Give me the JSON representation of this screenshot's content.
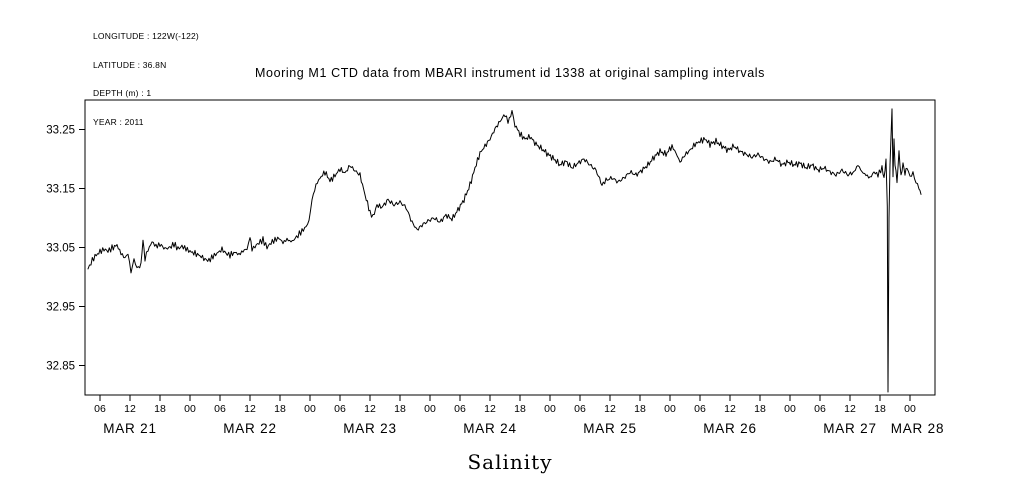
{
  "page": {
    "background": "#ffffff",
    "ink": "#000000"
  },
  "metadata_block": {
    "lines": [
      "LONGITUDE : 122W(-122)",
      "LATITUDE : 36.8N",
      "DEPTH (m) : 1",
      "YEAR : 2011"
    ]
  },
  "chart_data": {
    "type": "line",
    "title": "Mooring M1 CTD data from MBARI instrument id 1338 at original sampling intervals",
    "xlabel": "Salinity",
    "ylabel": "",
    "x_unit": "hours since MAR 21 2011 00:00",
    "xlim": [
      3,
      173
    ],
    "ylim": [
      32.8,
      33.3
    ],
    "grid": false,
    "legend": "none",
    "line_color": "#000000",
    "y_ticks": [
      33.25,
      33.15,
      33.05,
      32.95,
      32.85
    ],
    "x_hour_ticks": [
      {
        "t": 6,
        "label": "06"
      },
      {
        "t": 12,
        "label": "12"
      },
      {
        "t": 18,
        "label": "18"
      },
      {
        "t": 24,
        "label": "00"
      },
      {
        "t": 30,
        "label": "06"
      },
      {
        "t": 36,
        "label": "12"
      },
      {
        "t": 42,
        "label": "18"
      },
      {
        "t": 48,
        "label": "00"
      },
      {
        "t": 54,
        "label": "06"
      },
      {
        "t": 60,
        "label": "12"
      },
      {
        "t": 66,
        "label": "18"
      },
      {
        "t": 72,
        "label": "00"
      },
      {
        "t": 78,
        "label": "06"
      },
      {
        "t": 84,
        "label": "12"
      },
      {
        "t": 90,
        "label": "18"
      },
      {
        "t": 96,
        "label": "00"
      },
      {
        "t": 102,
        "label": "06"
      },
      {
        "t": 108,
        "label": "12"
      },
      {
        "t": 114,
        "label": "18"
      },
      {
        "t": 120,
        "label": "00"
      },
      {
        "t": 126,
        "label": "06"
      },
      {
        "t": 132,
        "label": "12"
      },
      {
        "t": 138,
        "label": "18"
      },
      {
        "t": 144,
        "label": "00"
      },
      {
        "t": 150,
        "label": "06"
      },
      {
        "t": 156,
        "label": "12"
      },
      {
        "t": 162,
        "label": "18"
      },
      {
        "t": 168,
        "label": "00"
      }
    ],
    "x_day_labels": [
      {
        "label": "MAR 21",
        "t": 12
      },
      {
        "label": "MAR 22",
        "t": 36
      },
      {
        "label": "MAR 23",
        "t": 60
      },
      {
        "label": "MAR 24",
        "t": 84
      },
      {
        "label": "MAR 25",
        "t": 108
      },
      {
        "label": "MAR 26",
        "t": 132
      },
      {
        "label": "MAR 27",
        "t": 156
      },
      {
        "label": "MAR 28",
        "t": 169.5
      }
    ],
    "series": [
      {
        "name": "Salinity",
        "points": [
          [
            3.6,
            33.012
          ],
          [
            4.2,
            33.025
          ],
          [
            5,
            33.035
          ],
          [
            6,
            33.043
          ],
          [
            6.8,
            33.047
          ],
          [
            7.6,
            33.044
          ],
          [
            8.4,
            33.049
          ],
          [
            9.4,
            33.054
          ],
          [
            10.2,
            33.04
          ],
          [
            11,
            33.032
          ],
          [
            11.6,
            33.04
          ],
          [
            12.2,
            33.008
          ],
          [
            12.8,
            33.03
          ],
          [
            13.4,
            33.015
          ],
          [
            14.2,
            33.02
          ],
          [
            14.6,
            33.063
          ],
          [
            15,
            33.032
          ],
          [
            15.6,
            33.045
          ],
          [
            16.4,
            33.06
          ],
          [
            17.2,
            33.052
          ],
          [
            18,
            33.055
          ],
          [
            19,
            33.048
          ],
          [
            20,
            33.05
          ],
          [
            20.8,
            33.056
          ],
          [
            21.6,
            33.048
          ],
          [
            22.4,
            33.052
          ],
          [
            23.2,
            33.048
          ],
          [
            24,
            33.043
          ],
          [
            25,
            33.04
          ],
          [
            26,
            33.036
          ],
          [
            27,
            33.03
          ],
          [
            27.8,
            33.028
          ],
          [
            28.6,
            33.035
          ],
          [
            29.4,
            33.04
          ],
          [
            30.4,
            33.047
          ],
          [
            31.2,
            33.04
          ],
          [
            32,
            33.037
          ],
          [
            33,
            33.042
          ],
          [
            33.8,
            33.038
          ],
          [
            34.6,
            33.044
          ],
          [
            35.4,
            33.048
          ],
          [
            36,
            33.066
          ],
          [
            36.4,
            33.046
          ],
          [
            37,
            33.052
          ],
          [
            37.8,
            33.058
          ],
          [
            38.6,
            33.063
          ],
          [
            39.4,
            33.05
          ],
          [
            40.2,
            33.058
          ],
          [
            41,
            33.063
          ],
          [
            41.8,
            33.066
          ],
          [
            42.6,
            33.058
          ],
          [
            43.4,
            33.064
          ],
          [
            44.2,
            33.06
          ],
          [
            45,
            33.064
          ],
          [
            45.6,
            33.071
          ],
          [
            46.4,
            33.078
          ],
          [
            47.2,
            33.085
          ],
          [
            47.8,
            33.095
          ],
          [
            48.4,
            33.131
          ],
          [
            49.2,
            33.156
          ],
          [
            50,
            33.168
          ],
          [
            51,
            33.178
          ],
          [
            52,
            33.163
          ],
          [
            53,
            33.172
          ],
          [
            54,
            33.183
          ],
          [
            55,
            33.176
          ],
          [
            56,
            33.189
          ],
          [
            57,
            33.18
          ],
          [
            58,
            33.173
          ],
          [
            59,
            33.139
          ],
          [
            60,
            33.11
          ],
          [
            60.6,
            33.102
          ],
          [
            61.4,
            33.122
          ],
          [
            62.4,
            33.118
          ],
          [
            63.6,
            33.131
          ],
          [
            64.8,
            33.122
          ],
          [
            66,
            33.127
          ],
          [
            67.2,
            33.118
          ],
          [
            68.4,
            33.093
          ],
          [
            69.4,
            33.08
          ],
          [
            70.4,
            33.088
          ],
          [
            71.6,
            33.095
          ],
          [
            72.8,
            33.1
          ],
          [
            74,
            33.093
          ],
          [
            75.2,
            33.105
          ],
          [
            76.4,
            33.098
          ],
          [
            77.6,
            33.114
          ],
          [
            78.8,
            33.131
          ],
          [
            80,
            33.156
          ],
          [
            81,
            33.185
          ],
          [
            82,
            33.21
          ],
          [
            83,
            33.222
          ],
          [
            84,
            33.234
          ],
          [
            85,
            33.251
          ],
          [
            86,
            33.264
          ],
          [
            87,
            33.276
          ],
          [
            87.6,
            33.262
          ],
          [
            88.4,
            33.28
          ],
          [
            89,
            33.258
          ],
          [
            90,
            33.242
          ],
          [
            91,
            33.234
          ],
          [
            92,
            33.238
          ],
          [
            93.2,
            33.225
          ],
          [
            94.4,
            33.217
          ],
          [
            95.6,
            33.208
          ],
          [
            96.8,
            33.2
          ],
          [
            98,
            33.19
          ],
          [
            99.2,
            33.196
          ],
          [
            100.4,
            33.185
          ],
          [
            101.6,
            33.193
          ],
          [
            102.8,
            33.2
          ],
          [
            104,
            33.19
          ],
          [
            105.2,
            33.181
          ],
          [
            106.4,
            33.156
          ],
          [
            107.2,
            33.164
          ],
          [
            108.4,
            33.168
          ],
          [
            109.6,
            33.161
          ],
          [
            110.8,
            33.168
          ],
          [
            112,
            33.178
          ],
          [
            113.2,
            33.173
          ],
          [
            114.4,
            33.181
          ],
          [
            115.6,
            33.19
          ],
          [
            116.8,
            33.203
          ],
          [
            118,
            33.213
          ],
          [
            119.2,
            33.208
          ],
          [
            120.4,
            33.222
          ],
          [
            121.2,
            33.21
          ],
          [
            122,
            33.195
          ],
          [
            123,
            33.207
          ],
          [
            124,
            33.215
          ],
          [
            125,
            33.225
          ],
          [
            126,
            33.23
          ],
          [
            127,
            33.234
          ],
          [
            128,
            33.225
          ],
          [
            129.2,
            33.23
          ],
          [
            130.4,
            33.222
          ],
          [
            131.6,
            33.215
          ],
          [
            132.8,
            33.222
          ],
          [
            134,
            33.213
          ],
          [
            135.2,
            33.208
          ],
          [
            136.4,
            33.203
          ],
          [
            137.6,
            33.208
          ],
          [
            138.8,
            33.2
          ],
          [
            140,
            33.195
          ],
          [
            141.2,
            33.2
          ],
          [
            142.4,
            33.19
          ],
          [
            143.6,
            33.195
          ],
          [
            144.8,
            33.19
          ],
          [
            146,
            33.193
          ],
          [
            147.2,
            33.185
          ],
          [
            148.4,
            33.19
          ],
          [
            149.6,
            33.181
          ],
          [
            150.8,
            33.185
          ],
          [
            152,
            33.178
          ],
          [
            153.2,
            33.173
          ],
          [
            154.4,
            33.181
          ],
          [
            155.6,
            33.173
          ],
          [
            156.8,
            33.178
          ],
          [
            157.6,
            33.19
          ],
          [
            158.4,
            33.178
          ],
          [
            159.2,
            33.173
          ],
          [
            160,
            33.168
          ],
          [
            160.8,
            33.178
          ],
          [
            161.6,
            33.173
          ],
          [
            162.4,
            33.185
          ],
          [
            162.8,
            33.164
          ],
          [
            163.2,
            33.2
          ],
          [
            163.45,
            33.12
          ],
          [
            163.6,
            32.805
          ],
          [
            163.8,
            33.1
          ],
          [
            164,
            33.19
          ],
          [
            164.4,
            33.285
          ],
          [
            164.6,
            33.17
          ],
          [
            164.8,
            33.23
          ],
          [
            165,
            33.19
          ],
          [
            165.4,
            33.16
          ],
          [
            165.8,
            33.212
          ],
          [
            166.2,
            33.172
          ],
          [
            166.6,
            33.195
          ],
          [
            167,
            33.176
          ],
          [
            167.4,
            33.186
          ],
          [
            168,
            33.17
          ],
          [
            168.6,
            33.176
          ],
          [
            169.2,
            33.16
          ],
          [
            169.8,
            33.152
          ],
          [
            170.2,
            33.14
          ]
        ]
      }
    ]
  }
}
